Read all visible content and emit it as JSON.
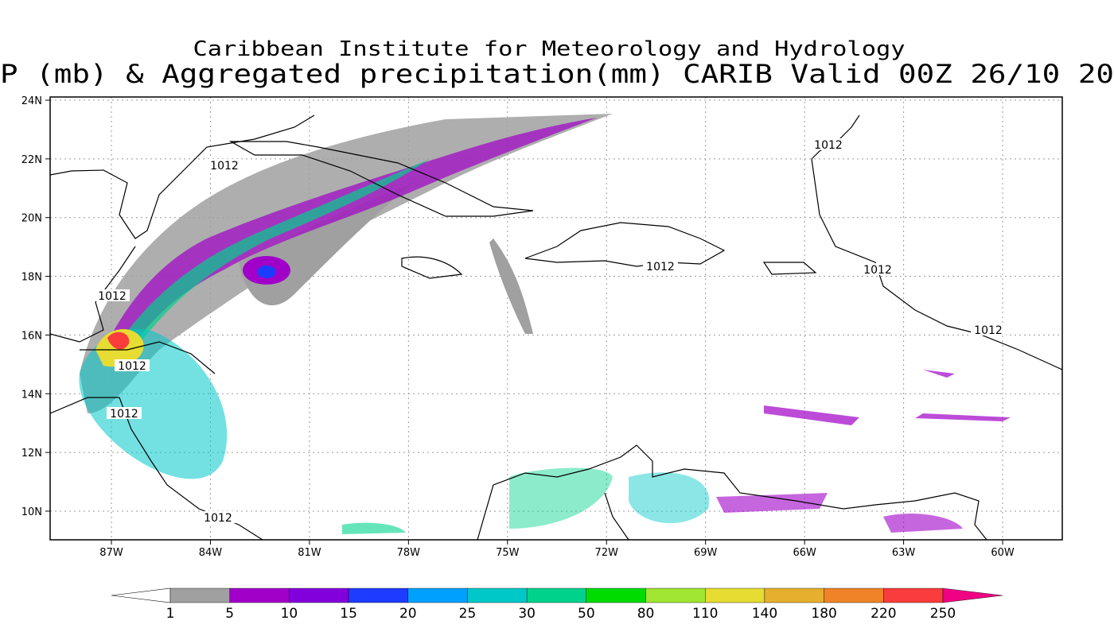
{
  "title": {
    "line1": "Caribbean Institute for Meteorology and Hydrology",
    "line2": "P (mb) & Aggregated precipitation(mm) CARIB Valid 00Z 26/10 20"
  },
  "lon_labels": [
    "87W",
    "84W",
    "81W",
    "78W",
    "75W",
    "72W",
    "69W",
    "66W",
    "63W",
    "60W"
  ],
  "lat_labels": [
    "24N",
    "22N",
    "20N",
    "18N",
    "16N",
    "14N",
    "12N",
    "10N"
  ],
  "contour_labels": [
    "1012",
    "1012",
    "1012",
    "1012",
    "1012",
    "1012",
    "1012",
    "1012",
    "1012"
  ],
  "colorbar": {
    "levels": [
      "1",
      "5",
      "10",
      "15",
      "20",
      "25",
      "30",
      "50",
      "80",
      "110",
      "140",
      "180",
      "220",
      "250"
    ],
    "colors": [
      "#a0a0a0",
      "#a000c8",
      "#8200dc",
      "#1e3cff",
      "#00a0ff",
      "#00c8c8",
      "#00d28c",
      "#00dc00",
      "#a0e632",
      "#e6dc32",
      "#e6af2d",
      "#f08228",
      "#fa3c3c"
    ],
    "over_color": "#f00082"
  }
}
